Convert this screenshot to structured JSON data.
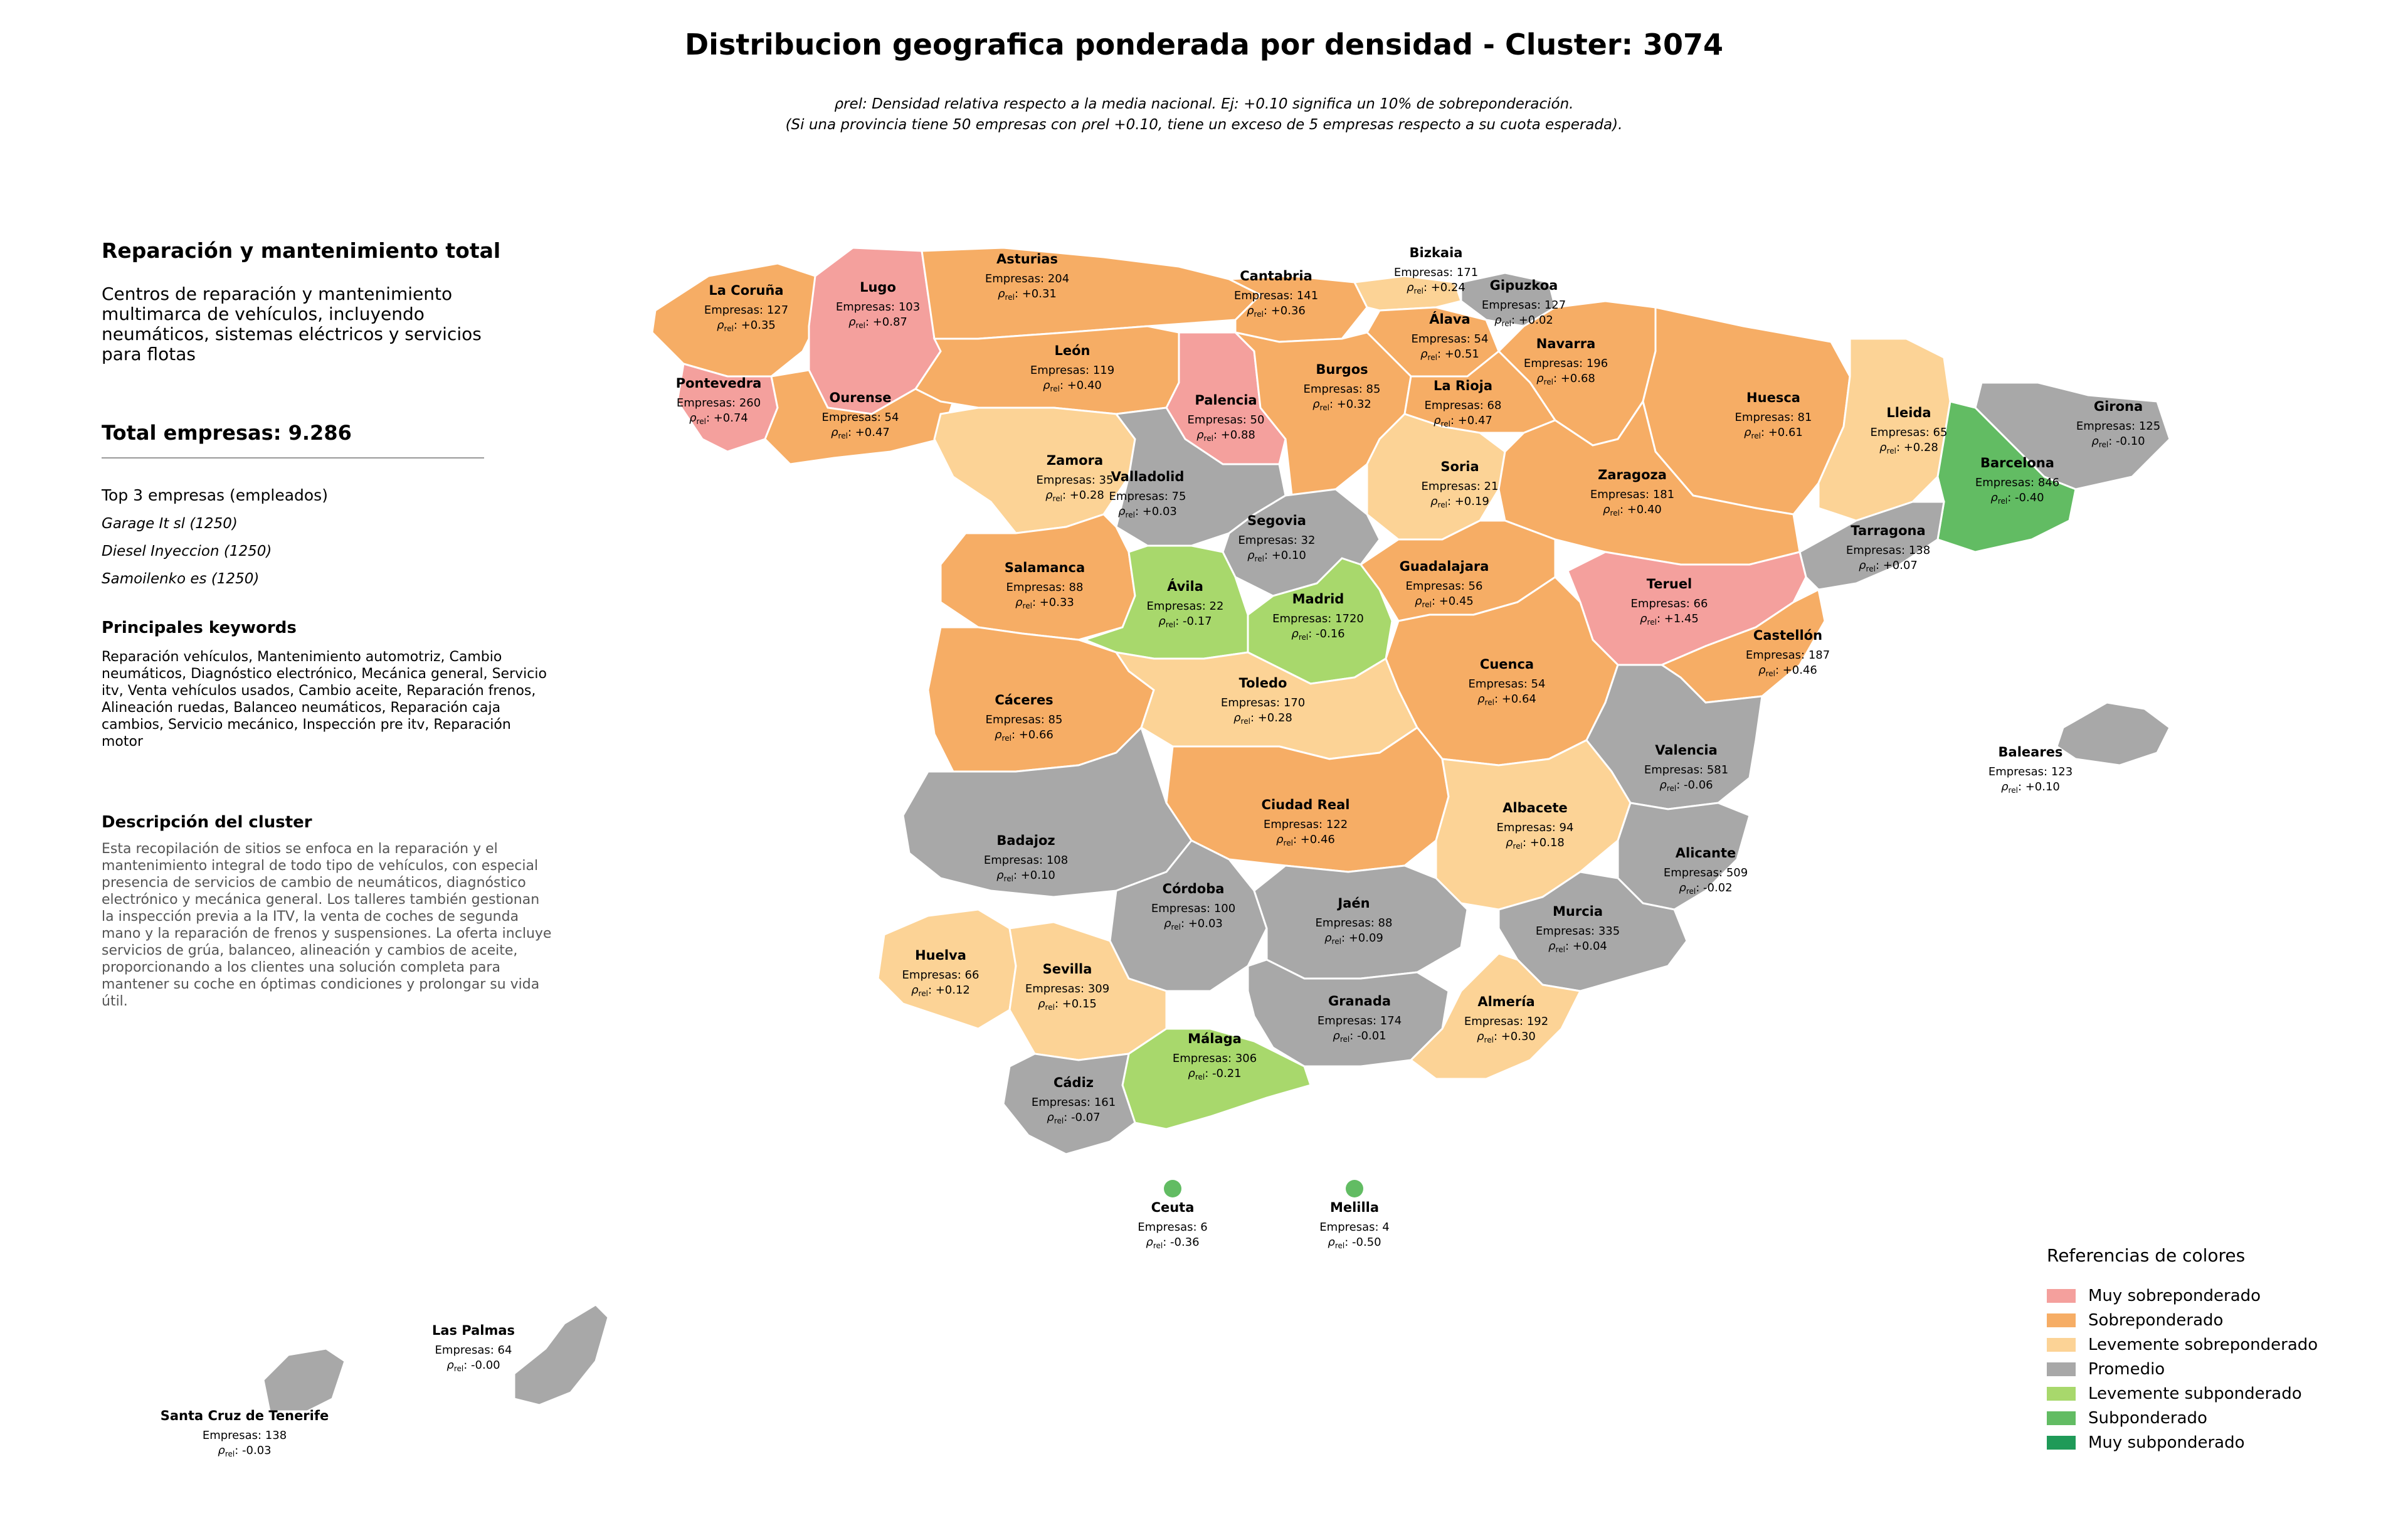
{
  "header": {
    "title": "Distribucion geografica ponderada por densidad - Cluster: 3074",
    "subtitle_line1": "ρrel: Densidad relativa respecto a la media nacional. Ej: +0.10 significa un 10% de sobreponderación.",
    "subtitle_line2": "(Si una provincia tiene 50 empresas con ρrel +0.10, tiene un exceso de 5 empresas respecto a su cuota esperada)."
  },
  "panel": {
    "heading": "Reparación y mantenimiento total",
    "description": "Centros de reparación y mantenimiento multimarca de vehículos, incluyendo neumáticos, sistemas eléctricos y servicios para flotas",
    "total_label": "Total empresas: 9.286",
    "top_heading": "Top 3 empresas (empleados)",
    "top_companies": [
      "Garage It sl (1250)",
      "Diesel Inyeccion (1250)",
      "Samoilenko es (1250)"
    ],
    "keywords_heading": "Principales keywords",
    "keywords": "Reparación vehículos, Mantenimiento automotriz, Cambio neumáticos, Diagnóstico electrónico, Mecánica general, Servicio itv, Venta vehículos usados, Cambio aceite, Reparación frenos, Alineación ruedas, Balanceo neumáticos, Reparación caja cambios, Servicio mecánico, Inspección pre itv, Reparación motor",
    "cluster_heading": "Descripción del cluster",
    "cluster_description": "Esta recopilación de sitios se enfoca en la reparación y el mantenimiento integral de todo tipo de vehículos, con especial presencia de servicios de cambio de neumáticos, diagnóstico electrónico y mecánica general. Los talleres también gestionan la inspección previa a la ITV, la venta de coches de segunda mano y la reparación de frenos y suspensiones. La oferta incluye servicios de grúa, balanceo, alineación y cambios de aceite, proporcionando a los clientes una solución completa para mantener su coche en óptimas condiciones y prolongar su vida útil."
  },
  "legend": {
    "title": "Referencias de colores",
    "items": [
      {
        "label": "Muy sobreponderado",
        "color": "#f4a09d"
      },
      {
        "label": "Sobreponderado",
        "color": "#f6ad65"
      },
      {
        "label": "Levemente sobreponderado",
        "color": "#fcd396"
      },
      {
        "label": "Promedio",
        "color": "#a8a8a8"
      },
      {
        "label": "Levemente subponderado",
        "color": "#a8d86c"
      },
      {
        "label": "Subponderado",
        "color": "#62bc63"
      },
      {
        "label": "Muy subponderado",
        "color": "#1f9a58"
      }
    ]
  },
  "provinces": [
    {
      "name": "La Coruña",
      "count": "Empresas: 127",
      "rho": "+0.35",
      "category": "Sobreponderado"
    },
    {
      "name": "Lugo",
      "count": "Empresas: 103",
      "rho": "+0.87",
      "category": "Muy sobreponderado"
    },
    {
      "name": "Asturias",
      "count": "Empresas: 204",
      "rho": "+0.31",
      "category": "Sobreponderado"
    },
    {
      "name": "Cantabria",
      "count": "Empresas: 141",
      "rho": "+0.36",
      "category": "Sobreponderado"
    },
    {
      "name": "Bizkaia",
      "count": "Empresas: 171",
      "rho": "+0.24",
      "category": "Levemente sobreponderado"
    },
    {
      "name": "Gipuzkoa",
      "count": "Empresas: 127",
      "rho": "+0.02",
      "category": "Promedio"
    },
    {
      "name": "Álava",
      "count": "Empresas: 54",
      "rho": "+0.51",
      "category": "Sobreponderado"
    },
    {
      "name": "Navarra",
      "count": "Empresas: 196",
      "rho": "+0.68",
      "category": "Sobreponderado"
    },
    {
      "name": "Pontevedra",
      "count": "Empresas: 260",
      "rho": "+0.74",
      "category": "Muy sobreponderado"
    },
    {
      "name": "Ourense",
      "count": "Empresas: 54",
      "rho": "+0.47",
      "category": "Sobreponderado"
    },
    {
      "name": "León",
      "count": "Empresas: 119",
      "rho": "+0.40",
      "category": "Sobreponderado"
    },
    {
      "name": "Palencia",
      "count": "Empresas: 50",
      "rho": "+0.88",
      "category": "Muy sobreponderado"
    },
    {
      "name": "Burgos",
      "count": "Empresas: 85",
      "rho": "+0.32",
      "category": "Sobreponderado"
    },
    {
      "name": "La Rioja",
      "count": "Empresas: 68",
      "rho": "+0.47",
      "category": "Sobreponderado"
    },
    {
      "name": "Huesca",
      "count": "Empresas: 81",
      "rho": "+0.61",
      "category": "Sobreponderado"
    },
    {
      "name": "Lleida",
      "count": "Empresas: 65",
      "rho": "+0.28",
      "category": "Levemente sobreponderado"
    },
    {
      "name": "Girona",
      "count": "Empresas: 125",
      "rho": "-0.10",
      "category": "Promedio"
    },
    {
      "name": "Barcelona",
      "count": "Empresas: 846",
      "rho": "-0.40",
      "category": "Subponderado"
    },
    {
      "name": "Zamora",
      "count": "Empresas: 35",
      "rho": "+0.28",
      "category": "Levemente sobreponderado"
    },
    {
      "name": "Valladolid",
      "count": "Empresas: 75",
      "rho": "+0.03",
      "category": "Promedio"
    },
    {
      "name": "Soria",
      "count": "Empresas: 21",
      "rho": "+0.19",
      "category": "Levemente sobreponderado"
    },
    {
      "name": "Zaragoza",
      "count": "Empresas: 181",
      "rho": "+0.40",
      "category": "Sobreponderado"
    },
    {
      "name": "Tarragona",
      "count": "Empresas: 138",
      "rho": "+0.07",
      "category": "Promedio"
    },
    {
      "name": "Segovia",
      "count": "Empresas: 32",
      "rho": "+0.10",
      "category": "Promedio"
    },
    {
      "name": "Salamanca",
      "count": "Empresas: 88",
      "rho": "+0.33",
      "category": "Sobreponderado"
    },
    {
      "name": "Ávila",
      "count": "Empresas: 22",
      "rho": "-0.17",
      "category": "Levemente subponderado"
    },
    {
      "name": "Madrid",
      "count": "Empresas: 1720",
      "rho": "-0.16",
      "category": "Levemente subponderado"
    },
    {
      "name": "Guadalajara",
      "count": "Empresas: 56",
      "rho": "+0.45",
      "category": "Sobreponderado"
    },
    {
      "name": "Teruel",
      "count": "Empresas: 66",
      "rho": "+1.45",
      "category": "Muy sobreponderado"
    },
    {
      "name": "Castellón",
      "count": "Empresas: 187",
      "rho": "+0.46",
      "category": "Sobreponderado"
    },
    {
      "name": "Cáceres",
      "count": "Empresas: 85",
      "rho": "+0.66",
      "category": "Sobreponderado"
    },
    {
      "name": "Toledo",
      "count": "Empresas: 170",
      "rho": "+0.28",
      "category": "Levemente sobreponderado"
    },
    {
      "name": "Cuenca",
      "count": "Empresas: 54",
      "rho": "+0.64",
      "category": "Sobreponderado"
    },
    {
      "name": "Valencia",
      "count": "Empresas: 581",
      "rho": "-0.06",
      "category": "Promedio"
    },
    {
      "name": "Baleares",
      "count": "Empresas: 123",
      "rho": "+0.10",
      "category": "Promedio"
    },
    {
      "name": "Ciudad Real",
      "count": "Empresas: 122",
      "rho": "+0.46",
      "category": "Sobreponderado"
    },
    {
      "name": "Albacete",
      "count": "Empresas: 94",
      "rho": "+0.18",
      "category": "Levemente sobreponderado"
    },
    {
      "name": "Badajoz",
      "count": "Empresas: 108",
      "rho": "+0.10",
      "category": "Promedio"
    },
    {
      "name": "Alicante",
      "count": "Empresas: 509",
      "rho": "-0.02",
      "category": "Promedio"
    },
    {
      "name": "Córdoba",
      "count": "Empresas: 100",
      "rho": "+0.03",
      "category": "Promedio"
    },
    {
      "name": "Jaén",
      "count": "Empresas: 88",
      "rho": "+0.09",
      "category": "Promedio"
    },
    {
      "name": "Murcia",
      "count": "Empresas: 335",
      "rho": "+0.04",
      "category": "Promedio"
    },
    {
      "name": "Huelva",
      "count": "Empresas: 66",
      "rho": "+0.12",
      "category": "Levemente sobreponderado"
    },
    {
      "name": "Sevilla",
      "count": "Empresas: 309",
      "rho": "+0.15",
      "category": "Levemente sobreponderado"
    },
    {
      "name": "Granada",
      "count": "Empresas: 174",
      "rho": "-0.01",
      "category": "Promedio"
    },
    {
      "name": "Almería",
      "count": "Empresas: 192",
      "rho": "+0.30",
      "category": "Levemente sobreponderado"
    },
    {
      "name": "Málaga",
      "count": "Empresas: 306",
      "rho": "-0.21",
      "category": "Levemente subponderado"
    },
    {
      "name": "Cádiz",
      "count": "Empresas: 161",
      "rho": "-0.07",
      "category": "Promedio"
    },
    {
      "name": "Ceuta",
      "count": "Empresas: 6",
      "rho": "-0.36",
      "category": "Subponderado"
    },
    {
      "name": "Melilla",
      "count": "Empresas: 4",
      "rho": "-0.50",
      "category": "Subponderado"
    },
    {
      "name": "Las Palmas",
      "count": "Empresas: 64",
      "rho": "-0.00",
      "category": "Promedio"
    },
    {
      "name": "Santa Cruz de Tenerife",
      "count": "Empresas: 138",
      "rho": "-0.03",
      "category": "Promedio"
    }
  ]
}
